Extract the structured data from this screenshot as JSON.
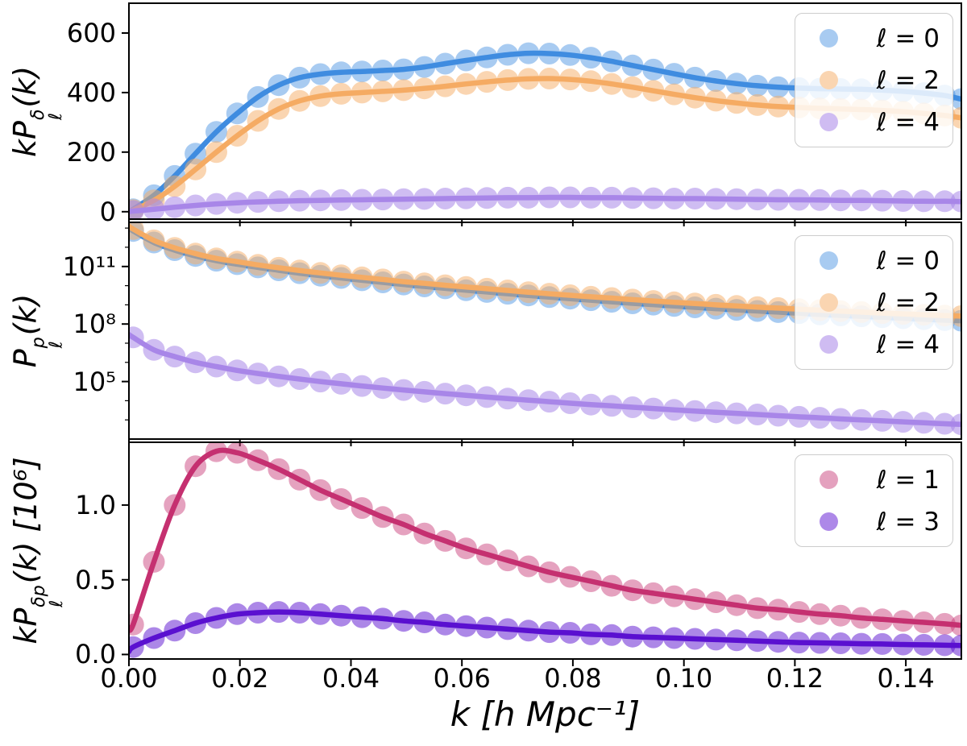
{
  "figure": {
    "background": "#ffffff",
    "axis_color": "#000000",
    "legend_border_color": "#cccccc"
  },
  "chart_data": {
    "type": "line",
    "subtype": "line+scatter, 3 vertically stacked panels sharing x axis",
    "xlabel": "k [h Mpc⁻¹]",
    "xlim": [
      0,
      0.15
    ],
    "x_ticks": [
      {
        "v": 0.0,
        "label": "0.00"
      },
      {
        "v": 0.02,
        "label": "0.02"
      },
      {
        "v": 0.04,
        "label": "0.04"
      },
      {
        "v": 0.06,
        "label": "0.06"
      },
      {
        "v": 0.08,
        "label": "0.08"
      },
      {
        "v": 0.1,
        "label": "0.10"
      },
      {
        "v": 0.12,
        "label": "0.12"
      },
      {
        "v": 0.14,
        "label": "0.14"
      }
    ],
    "k": [
      0,
      0.00075,
      0.0045,
      0.00825,
      0.012,
      0.01575,
      0.0195,
      0.02325,
      0.027,
      0.03075,
      0.0345,
      0.03825,
      0.042,
      0.04575,
      0.0495,
      0.05325,
      0.057,
      0.06075,
      0.0645,
      0.06825,
      0.072,
      0.07575,
      0.0795,
      0.08325,
      0.087,
      0.09075,
      0.0945,
      0.09825,
      0.102,
      0.10575,
      0.1095,
      0.11325,
      0.117,
      0.12075,
      0.1245,
      0.12825,
      0.132,
      0.13575,
      0.1395,
      0.14325,
      0.147,
      0.15
    ],
    "panels": [
      {
        "id": "top",
        "ylabel": {
          "pre": "kP",
          "sup": "δ",
          "sub": "ℓ",
          "post": "(k)"
        },
        "yscale": "linear",
        "ylim": [
          -25,
          700
        ],
        "y_ticks": [
          {
            "v": 0,
            "label": "0"
          },
          {
            "v": 200,
            "label": "200"
          },
          {
            "v": 400,
            "label": "400"
          },
          {
            "v": 600,
            "label": "600"
          }
        ],
        "series": [
          {
            "label": "ℓ = 0",
            "line_color": "#3f8ce0",
            "marker_color": "#a8cbf1",
            "dot_opacity": 0.45,
            "values": [
              0,
              8,
              55,
              120,
              195,
              268,
              330,
              385,
              425,
              450,
              462,
              468,
              471,
              474,
              478,
              486,
              497,
              508,
              518,
              527,
              532,
              531,
              526,
              517,
              505,
              491,
              477,
              463,
              450,
              439,
              430,
              423,
              418,
              415,
              413,
              412,
              411,
              408,
              404,
              398,
              390,
              378
            ]
          },
          {
            "label": "ℓ = 2",
            "line_color": "#f5ab63",
            "marker_color": "#fad5b1",
            "dot_opacity": 0.5,
            "values": [
              0,
              5,
              38,
              85,
              142,
              200,
              255,
              305,
              345,
              372,
              388,
              396,
              400,
              404,
              408,
              414,
              421,
              429,
              436,
              442,
              446,
              447,
              444,
              438,
              429,
              418,
              406,
              394,
              383,
              373,
              365,
              358,
              353,
              350,
              347,
              345,
              343,
              340,
              336,
              330,
              323,
              315
            ]
          },
          {
            "label": "ℓ = 4",
            "line_color": "#a886e8",
            "marker_color": "#cfbcf2",
            "dot_opacity": 0.55,
            "values": [
              0,
              2,
              8,
              15,
              21,
              26,
              30,
              33,
              35,
              37,
              38,
              39,
              40,
              41,
              42,
              43,
              44,
              45,
              46,
              47,
              47,
              48,
              48,
              47,
              47,
              46,
              45,
              44,
              44,
              43,
              42,
              41,
              40,
              40,
              39,
              38,
              38,
              37,
              36,
              35,
              35,
              34
            ]
          }
        ]
      },
      {
        "id": "middle",
        "ylabel": {
          "pre": "P",
          "sup": "p",
          "sub": "ℓ",
          "post": "(k)"
        },
        "yscale": "log",
        "values_are": "log10",
        "ylim_log10": [
          2,
          13.3
        ],
        "y_ticks": [
          {
            "v": 5,
            "label": "10⁵"
          },
          {
            "v": 8,
            "label": "10⁸"
          },
          {
            "v": 11,
            "label": "10¹¹"
          }
        ],
        "y_minor_ticks": [
          3,
          4,
          6,
          7,
          9,
          10,
          12,
          13
        ],
        "series": [
          {
            "label": "ℓ = 0",
            "line_color": "#3f8ce0",
            "marker_color": "#a8cbf1",
            "dot_opacity": 0.45,
            "values": [
              13.0,
              12.85,
              12.25,
              11.85,
              11.55,
              11.3,
              11.12,
              10.95,
              10.8,
              10.65,
              10.52,
              10.4,
              10.28,
              10.17,
              10.06,
              9.96,
              9.86,
              9.76,
              9.67,
              9.58,
              9.49,
              9.4,
              9.32,
              9.24,
              9.16,
              9.08,
              9.01,
              8.94,
              8.87,
              8.8,
              8.74,
              8.68,
              8.62,
              8.56,
              8.5,
              8.45,
              8.4,
              8.35,
              8.3,
              8.25,
              8.2,
              8.17
            ]
          },
          {
            "label": "ℓ = 2",
            "line_color": "#f5ab63",
            "marker_color": "#fad5b1",
            "dot_opacity": 0.5,
            "values": [
              13.1,
              12.95,
              12.36,
              11.97,
              11.67,
              11.42,
              11.25,
              11.08,
              10.93,
              10.79,
              10.66,
              10.54,
              10.43,
              10.32,
              10.21,
              10.12,
              10.02,
              9.93,
              9.84,
              9.75,
              9.66,
              9.58,
              9.5,
              9.42,
              9.35,
              9.27,
              9.2,
              9.13,
              9.07,
              9.0,
              8.94,
              8.88,
              8.83,
              8.77,
              8.72,
              8.67,
              8.62,
              8.57,
              8.53,
              8.48,
              8.44,
              8.41
            ]
          },
          {
            "label": "ℓ = 4",
            "line_color": "#a886e8",
            "marker_color": "#cfbcf2",
            "dot_opacity": 0.55,
            "values": [
              7.45,
              7.3,
              6.65,
              6.3,
              6.0,
              5.78,
              5.58,
              5.42,
              5.27,
              5.13,
              5.0,
              4.88,
              4.77,
              4.66,
              4.56,
              4.46,
              4.37,
              4.28,
              4.19,
              4.11,
              4.03,
              3.95,
              3.87,
              3.8,
              3.73,
              3.66,
              3.59,
              3.52,
              3.46,
              3.4,
              3.34,
              3.28,
              3.22,
              3.16,
              3.11,
              3.05,
              3.0,
              2.95,
              2.9,
              2.85,
              2.8,
              2.77
            ]
          }
        ]
      },
      {
        "id": "bottom",
        "ylabel": {
          "pre": "kP",
          "sup": "δp",
          "sub": "ℓ",
          "post": "(k) [10⁶]"
        },
        "yscale": "linear",
        "ylim": [
          -0.03,
          1.42
        ],
        "y_ticks": [
          {
            "v": 0,
            "label": "0.0"
          },
          {
            "v": 0.5,
            "label": "0.5"
          },
          {
            "v": 1.0,
            "label": "1.0"
          }
        ],
        "series": [
          {
            "label": "ℓ = 1",
            "line_color": "#c53070",
            "marker_color": "#e4a1be",
            "dot_opacity": 0.45,
            "values": [
              0.18,
              0.2,
              0.62,
              1.0,
              1.26,
              1.36,
              1.35,
              1.3,
              1.24,
              1.17,
              1.1,
              1.04,
              0.98,
              0.92,
              0.87,
              0.81,
              0.76,
              0.71,
              0.67,
              0.63,
              0.59,
              0.55,
              0.52,
              0.49,
              0.46,
              0.43,
              0.41,
              0.39,
              0.37,
              0.35,
              0.33,
              0.31,
              0.3,
              0.285,
              0.27,
              0.26,
              0.245,
              0.235,
              0.225,
              0.215,
              0.205,
              0.195
            ]
          },
          {
            "label": "ℓ = 3",
            "line_color": "#5a10d0",
            "marker_color": "#ad88e8",
            "dot_opacity": 0.5,
            "values": [
              0.02,
              0.05,
              0.11,
              0.16,
              0.21,
              0.245,
              0.27,
              0.28,
              0.285,
              0.28,
              0.27,
              0.26,
              0.25,
              0.24,
              0.225,
              0.215,
              0.2,
              0.19,
              0.18,
              0.17,
              0.16,
              0.15,
              0.145,
              0.135,
              0.13,
              0.12,
              0.115,
              0.11,
              0.105,
              0.1,
              0.095,
              0.09,
              0.085,
              0.08,
              0.078,
              0.075,
              0.072,
              0.07,
              0.067,
              0.065,
              0.062,
              0.06
            ]
          }
        ]
      }
    ]
  }
}
